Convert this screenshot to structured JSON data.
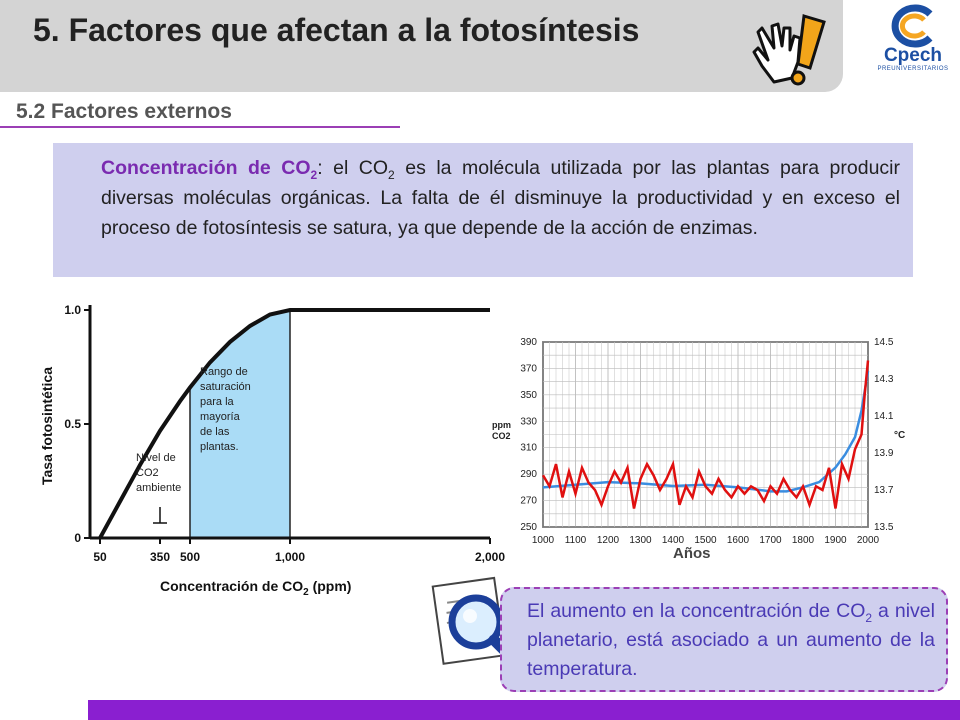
{
  "title": "5. Factores que afectan a la fotosíntesis",
  "subtitle": "5.2 Factores externos",
  "logo": {
    "text": "Cpech",
    "sub": "PREUNIVERSITARIOS"
  },
  "description": {
    "keyword": "Concentración de CO",
    "keyword_sub": "2",
    "part1": ": el CO",
    "part1_sub": "2",
    "part2": " es la molécula utilizada por las plantas para producir diversas moléculas orgánicas. La falta de él disminuye la productividad y en  exceso el proceso de fotosíntesis se satura, ya que depende de la acción de enzimas."
  },
  "note": {
    "part1": "El aumento en la concentración de CO",
    "sub": "2",
    "part2": " a nivel planetario, está asociado a un aumento de la temperatura."
  },
  "colors": {
    "purple": "#8a1fd0",
    "box": "#cfcfee",
    "saturation_fill": "#aadcf6",
    "temp_line": "#e01010",
    "co2_line": "#3a8de0"
  },
  "chart_data": [
    {
      "type": "area",
      "xlabel": "Concentración de CO",
      "xlabel_sub": "2",
      "xlabel_suffix": " (ppm)",
      "ylabel": "Tasa fotosintética",
      "xticks": [
        "50",
        "350",
        "500",
        "1,000",
        "2,000"
      ],
      "yticks": [
        "0",
        "0.5",
        "1.0"
      ],
      "x": [
        50,
        150,
        250,
        350,
        450,
        500,
        600,
        700,
        800,
        900,
        1000,
        1200,
        1600,
        2000
      ],
      "y": [
        0.0,
        0.16,
        0.32,
        0.47,
        0.6,
        0.66,
        0.77,
        0.86,
        0.93,
        0.98,
        1.0,
        1.0,
        1.0,
        1.0
      ],
      "xlim": [
        0,
        2000
      ],
      "ylim": [
        0,
        1.0
      ],
      "bracket_label": [
        "Nivel de",
        "CO2",
        "ambiente"
      ],
      "saturation_label": [
        "Rango de",
        "saturación",
        "para la",
        "mayoría",
        "de las",
        "plantas."
      ],
      "saturation_range": [
        500,
        1000
      ]
    },
    {
      "type": "line",
      "xlabel": "Años",
      "ylabel_left": [
        "ppm",
        "CO2"
      ],
      "ylabel_right": "°C",
      "xticks": [
        "1000",
        "1100",
        "1200",
        "1300",
        "1400",
        "1500",
        "1600",
        "1700",
        "1800",
        "1900",
        "2000"
      ],
      "yticks_left": [
        "250",
        "270",
        "290",
        "310",
        "330",
        "350",
        "370",
        "390"
      ],
      "yticks_right": [
        "13.5",
        "13.7",
        "13.9",
        "14.1",
        "14.3",
        "14.5"
      ],
      "xlim": [
        1000,
        2000
      ],
      "ylim_left": [
        250,
        390
      ],
      "ylim_right": [
        13.5,
        14.5
      ],
      "series": [
        {
          "axis": "left",
          "x": [
            1000,
            1100,
            1200,
            1300,
            1400,
            1500,
            1600,
            1700,
            1750,
            1800,
            1850,
            1900,
            1930,
            1960,
            1980,
            2000
          ],
          "values": [
            280,
            282,
            284,
            283,
            281,
            282,
            280,
            277,
            277,
            280,
            284,
            295,
            305,
            318,
            338,
            368
          ]
        },
        {
          "axis": "right",
          "x": [
            1000,
            1020,
            1040,
            1060,
            1080,
            1100,
            1120,
            1140,
            1160,
            1180,
            1200,
            1220,
            1240,
            1260,
            1280,
            1300,
            1320,
            1340,
            1360,
            1380,
            1400,
            1420,
            1440,
            1460,
            1480,
            1500,
            1520,
            1540,
            1560,
            1580,
            1600,
            1620,
            1640,
            1660,
            1680,
            1700,
            1720,
            1740,
            1760,
            1780,
            1800,
            1820,
            1840,
            1860,
            1880,
            1900,
            1920,
            1940,
            1960,
            1980,
            1990,
            2000
          ],
          "values": [
            13.78,
            13.72,
            13.84,
            13.66,
            13.8,
            13.68,
            13.82,
            13.74,
            13.7,
            13.62,
            13.72,
            13.8,
            13.74,
            13.82,
            13.6,
            13.76,
            13.84,
            13.78,
            13.7,
            13.76,
            13.84,
            13.62,
            13.72,
            13.66,
            13.8,
            13.72,
            13.68,
            13.76,
            13.7,
            13.66,
            13.72,
            13.68,
            13.72,
            13.7,
            13.64,
            13.72,
            13.68,
            13.76,
            13.7,
            13.66,
            13.72,
            13.62,
            13.72,
            13.7,
            13.82,
            13.6,
            13.84,
            13.76,
            13.92,
            14.0,
            14.22,
            14.4
          ]
        }
      ]
    }
  ]
}
